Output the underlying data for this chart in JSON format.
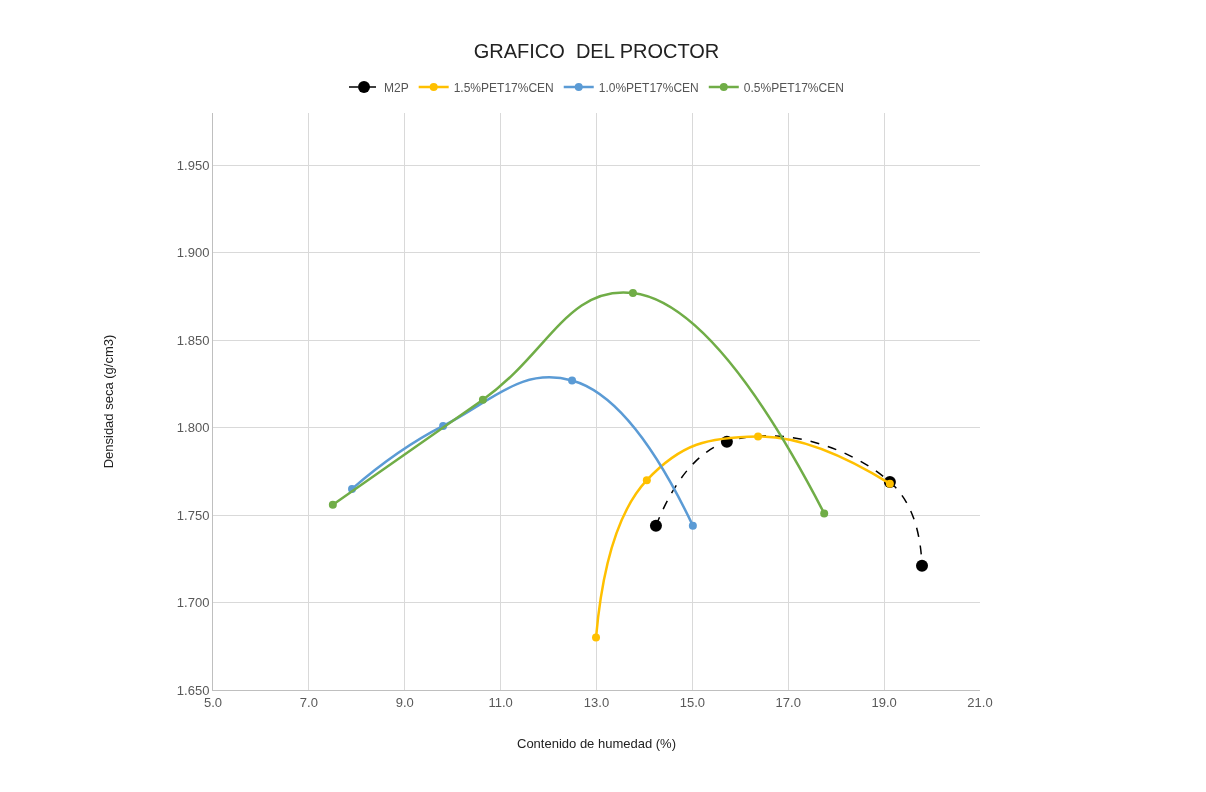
{
  "chart_data": {
    "type": "line",
    "title": "GRAFICO  DEL PROCTOR",
    "xlabel": "Contenido de humedad (%)",
    "ylabel": "Densidad seca (g/cm3)",
    "xlim": [
      5,
      21
    ],
    "ylim": [
      1.65,
      1.98
    ],
    "xticks": [
      {
        "value": 5,
        "label": "5.0"
      },
      {
        "value": 7,
        "label": "7.0"
      },
      {
        "value": 9,
        "label": "9.0"
      },
      {
        "value": 11,
        "label": "11.0"
      },
      {
        "value": 13,
        "label": "13.0"
      },
      {
        "value": 15,
        "label": "15.0"
      },
      {
        "value": 17,
        "label": "17.0"
      },
      {
        "value": 19,
        "label": "19.0"
      },
      {
        "value": 21,
        "label": "21.0"
      }
    ],
    "yticks": [
      {
        "value": 1.65,
        "label": "1.650"
      },
      {
        "value": 1.7,
        "label": "1.700"
      },
      {
        "value": 1.75,
        "label": "1.750"
      },
      {
        "value": 1.8,
        "label": "1.800"
      },
      {
        "value": 1.85,
        "label": "1.850"
      },
      {
        "value": 1.9,
        "label": "1.900"
      },
      {
        "value": 1.95,
        "label": "1.950"
      }
    ],
    "grid": true,
    "legend": "top",
    "marker": "circle",
    "series": [
      {
        "name": "M2P",
        "color": "#000000",
        "line_style": "dashed",
        "x": [
          14.24,
          15.72,
          19.12,
          19.79
        ],
        "values": [
          1.744,
          1.792,
          1.769,
          1.721
        ]
      },
      {
        "name": "1.5%PET17%CEN",
        "color": "#ffc000",
        "line_style": "solid",
        "x": [
          12.99,
          14.05,
          16.37,
          19.12
        ],
        "values": [
          1.68,
          1.77,
          1.795,
          1.768
        ]
      },
      {
        "name": "1.0%PET17%CEN",
        "color": "#5b9bd5",
        "line_style": "solid",
        "x": [
          7.9,
          9.8,
          12.49,
          15.01
        ],
        "values": [
          1.765,
          1.801,
          1.827,
          1.744
        ]
      },
      {
        "name": "0.5%PET17%CEN",
        "color": "#70ad47",
        "line_style": "solid",
        "x": [
          7.5,
          10.63,
          13.76,
          17.75
        ],
        "values": [
          1.756,
          1.816,
          1.877,
          1.751
        ]
      }
    ]
  }
}
